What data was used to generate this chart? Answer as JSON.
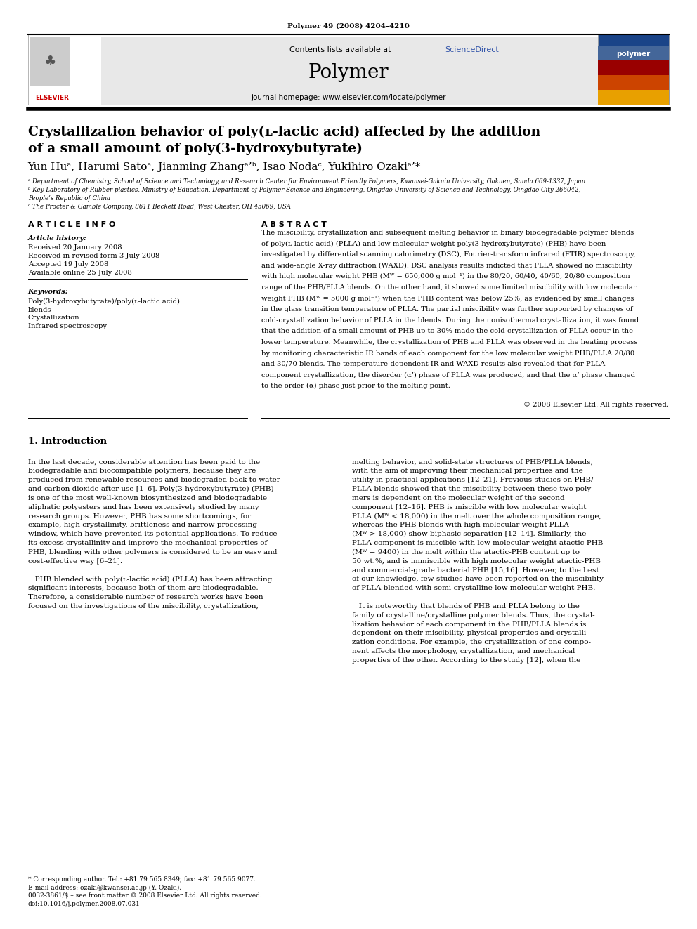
{
  "page_width": 9.92,
  "page_height": 13.23,
  "background_color": "#ffffff",
  "journal_ref": "Polymer 49 (2008) 4204–4210",
  "header_bg": "#e8e8e8",
  "sciencedirect_color": "#3355aa",
  "journal_name": "Polymer",
  "journal_homepage": "journal homepage: www.elsevier.com/locate/polymer",
  "title_line1": "Crystallization behavior of poly(ʟ-lactic acid) affected by the addition",
  "title_line2": "of a small amount of poly(3-hydroxybutyrate)",
  "authors": "Yun Huᵃ, Harumi Satoᵃ, Jianming Zhangᵃ’ᵇ, Isao Nodaᶜ, Yukihiro Ozakiᵃ’*",
  "affil_a": "ᵃ Department of Chemistry, School of Science and Technology, and Research Center for Environment Friendly Polymers, Kwansei-Gakuin University, Gakuen, Sanda 669-1337, Japan",
  "affil_b": "ᵇ Key Laboratory of Rubber-plastics, Ministry of Education, Department of Polymer Science and Engineering, Qingdao University of Science and Technology, Qingdao City 266042,",
  "affil_b2": "People’s Republic of China",
  "affil_c": "ᶜ The Procter & Gamble Company, 8611 Beckett Road, West Chester, OH 45069, USA",
  "abstract_text_lines": [
    "The miscibility, crystallization and subsequent melting behavior in binary biodegradable polymer blends",
    "of poly(ʟ-lactic acid) (PLLA) and low molecular weight poly(3-hydroxybutyrate) (PHB) have been",
    "investigated by differential scanning calorimetry (DSC), Fourier-transform infrared (FTIR) spectroscopy,",
    "and wide-angle X-ray diffraction (WAXD). DSC analysis results indicted that PLLA showed no miscibility",
    "with high molecular weight PHB (Mᵂ = 650,000 g mol⁻¹) in the 80/20, 60/40, 40/60, 20/80 composition",
    "range of the PHB/PLLA blends. On the other hand, it showed some limited miscibility with low molecular",
    "weight PHB (Mᵂ = 5000 g mol⁻¹) when the PHB content was below 25%, as evidenced by small changes",
    "in the glass transition temperature of PLLA. The partial miscibility was further supported by changes of",
    "cold-crystallization behavior of PLLA in the blends. During the nonisothermal crystallization, it was found",
    "that the addition of a small amount of PHB up to 30% made the cold-crystallization of PLLA occur in the",
    "lower temperature. Meanwhile, the crystallization of PHB and PLLA was observed in the heating process",
    "by monitoring characteristic IR bands of each component for the low molecular weight PHB/PLLA 20/80",
    "and 30/70 blends. The temperature-dependent IR and WAXD results also revealed that for PLLA",
    "component crystallization, the disorder (α’) phase of PLLA was produced, and that the α’ phase changed",
    "to the order (α) phase just prior to the melting point."
  ],
  "copyright": "© 2008 Elsevier Ltd. All rights reserved.",
  "col1_lines": [
    "In the last decade, considerable attention has been paid to the",
    "biodegradable and biocompatible polymers, because they are",
    "produced from renewable resources and biodegraded back to water",
    "and carbon dioxide after use [1–6]. Poly(3-hydroxybutyrate) (PHB)",
    "is one of the most well-known biosynthesized and biodegradable",
    "aliphatic polyesters and has been extensively studied by many",
    "research groups. However, PHB has some shortcomings, for",
    "example, high crystallinity, brittleness and narrow processing",
    "window, which have prevented its potential applications. To reduce",
    "its excess crystallinity and improve the mechanical properties of",
    "PHB, blending with other polymers is considered to be an easy and",
    "cost-effective way [6–21].",
    "",
    "   PHB blended with poly(ʟ-lactic acid) (PLLA) has been attracting",
    "significant interests, because both of them are biodegradable.",
    "Therefore, a considerable number of research works have been",
    "focused on the investigations of the miscibility, crystallization,"
  ],
  "col2_lines": [
    "melting behavior, and solid-state structures of PHB/PLLA blends,",
    "with the aim of improving their mechanical properties and the",
    "utility in practical applications [12–21]. Previous studies on PHB/",
    "PLLA blends showed that the miscibility between these two poly-",
    "mers is dependent on the molecular weight of the second",
    "component [12–16]. PHB is miscible with low molecular weight",
    "PLLA (Mᵂ < 18,000) in the melt over the whole composition range,",
    "whereas the PHB blends with high molecular weight PLLA",
    "(Mᵂ > 18,000) show biphasic separation [12–14]. Similarly, the",
    "PLLA component is miscible with low molecular weight atactic-PHB",
    "(Mᵂ = 9400) in the melt within the atactic-PHB content up to",
    "50 wt.%, and is immiscible with high molecular weight atactic-PHB",
    "and commercial-grade bacterial PHB [15,16]. However, to the best",
    "of our knowledge, few studies have been reported on the miscibility",
    "of PLLA blended with semi-crystalline low molecular weight PHB.",
    "",
    "   It is noteworthy that blends of PHB and PLLA belong to the",
    "family of crystalline/crystalline polymer blends. Thus, the crystal-",
    "lization behavior of each component in the PHB/PLLA blends is",
    "dependent on their miscibility, physical properties and crystalli-",
    "zation conditions. For example, the crystallization of one compo-",
    "nent affects the morphology, crystallization, and mechanical",
    "properties of the other. According to the study [12], when the"
  ],
  "footer_lines": [
    "* Corresponding author. Tel.: +81 79 565 8349; fax: +81 79 565 9077.",
    "E-mail address: ozaki@kwansei.ac.jp (Y. Ozaki).",
    "0032-3861/$ – see front matter © 2008 Elsevier Ltd. All rights reserved.",
    "doi:10.1016/j.polymer.2008.07.031"
  ]
}
